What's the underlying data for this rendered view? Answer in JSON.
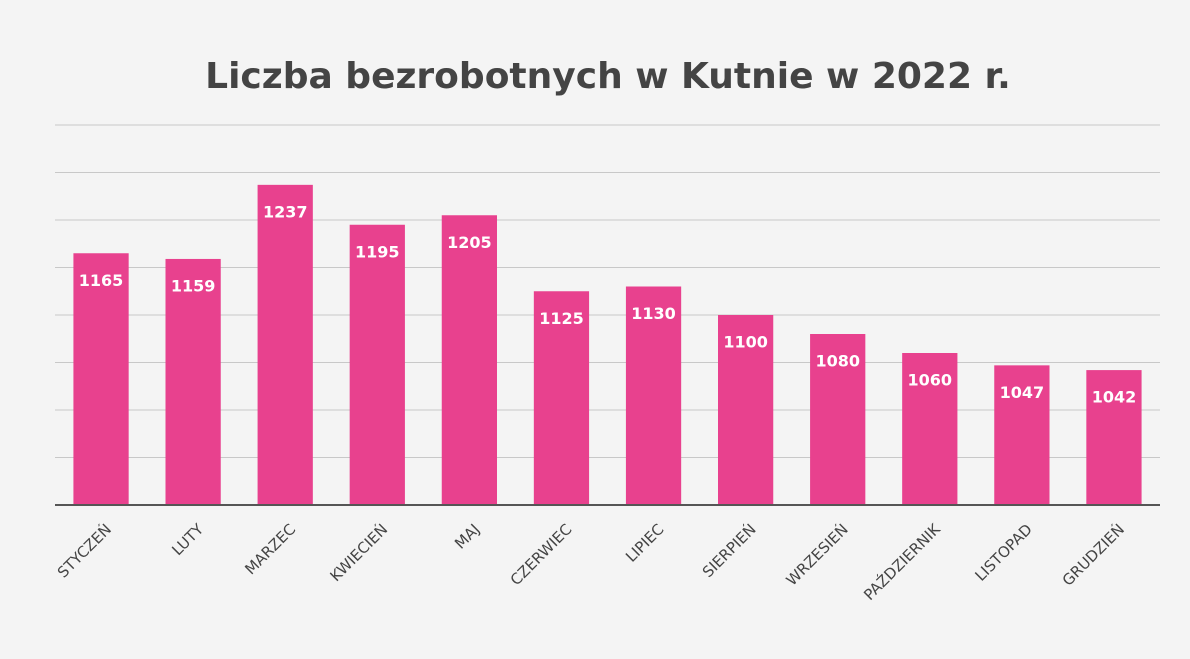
{
  "chart_data": {
    "type": "bar",
    "title": "Liczba bezrobotnych w Kutnie w 2022 r.",
    "categories": [
      "STYCZEŃ",
      "LUTY",
      "MARZEC",
      "KWIECIEŃ",
      "MAJ",
      "CZERWIEC",
      "LIPIEC",
      "SIERPIEŃ",
      "WRZESIEŃ",
      "PAŹDZIERNIK",
      "LISTOPAD",
      "GRUDZIEŃ"
    ],
    "values": [
      1165,
      1159,
      1237,
      1195,
      1205,
      1125,
      1130,
      1100,
      1080,
      1060,
      1047,
      1042
    ],
    "color": "#e8418e",
    "ylim": [
      900,
      1300
    ],
    "yticks": [
      900,
      950,
      1000,
      1050,
      1100,
      1150,
      1200,
      1250,
      1300
    ],
    "grid": true
  }
}
